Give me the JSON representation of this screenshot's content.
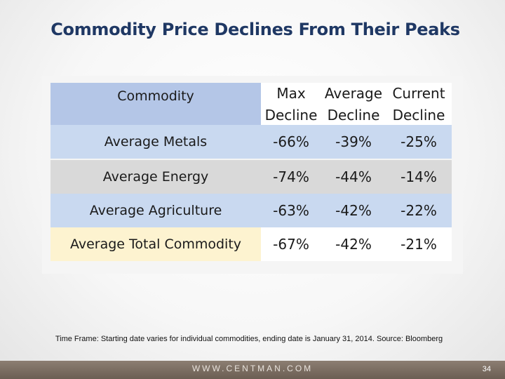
{
  "slide": {
    "title": "Commodity Price Declines From Their Peaks",
    "footnote": "Time Frame: Starting date varies for individual commodities, ending date is January 31, 2014.  Source: Bloomberg",
    "website": "WWW.CENTMAN.COM",
    "page_number": "34"
  },
  "table": {
    "headers": {
      "commodity": "Commodity",
      "max_line1": "Max",
      "max_line2": "Decline",
      "avg_line1": "Average",
      "avg_line2": "Decline",
      "cur_line1": "Current",
      "cur_line2": "Decline"
    },
    "rows": [
      {
        "name": "Average Metals",
        "max": "-66%",
        "avg": "-39%",
        "current": "-25%"
      },
      {
        "name": "Average Energy",
        "max": "-74%",
        "avg": "-44%",
        "current": "-14%"
      },
      {
        "name": "Average Agriculture",
        "max": "-63%",
        "avg": "-42%",
        "current": "-22%"
      },
      {
        "name": "Average Total Commodity",
        "max": "-67%",
        "avg": "-42%",
        "current": "-21%"
      }
    ]
  },
  "colors": {
    "title": "#1f3864",
    "header_fill": "#b4c6e7",
    "row_blue": "#c9d9f0",
    "row_gray": "#d9d9d9",
    "row_cream": "#fdf3d0",
    "footer": "#7a6d61"
  }
}
